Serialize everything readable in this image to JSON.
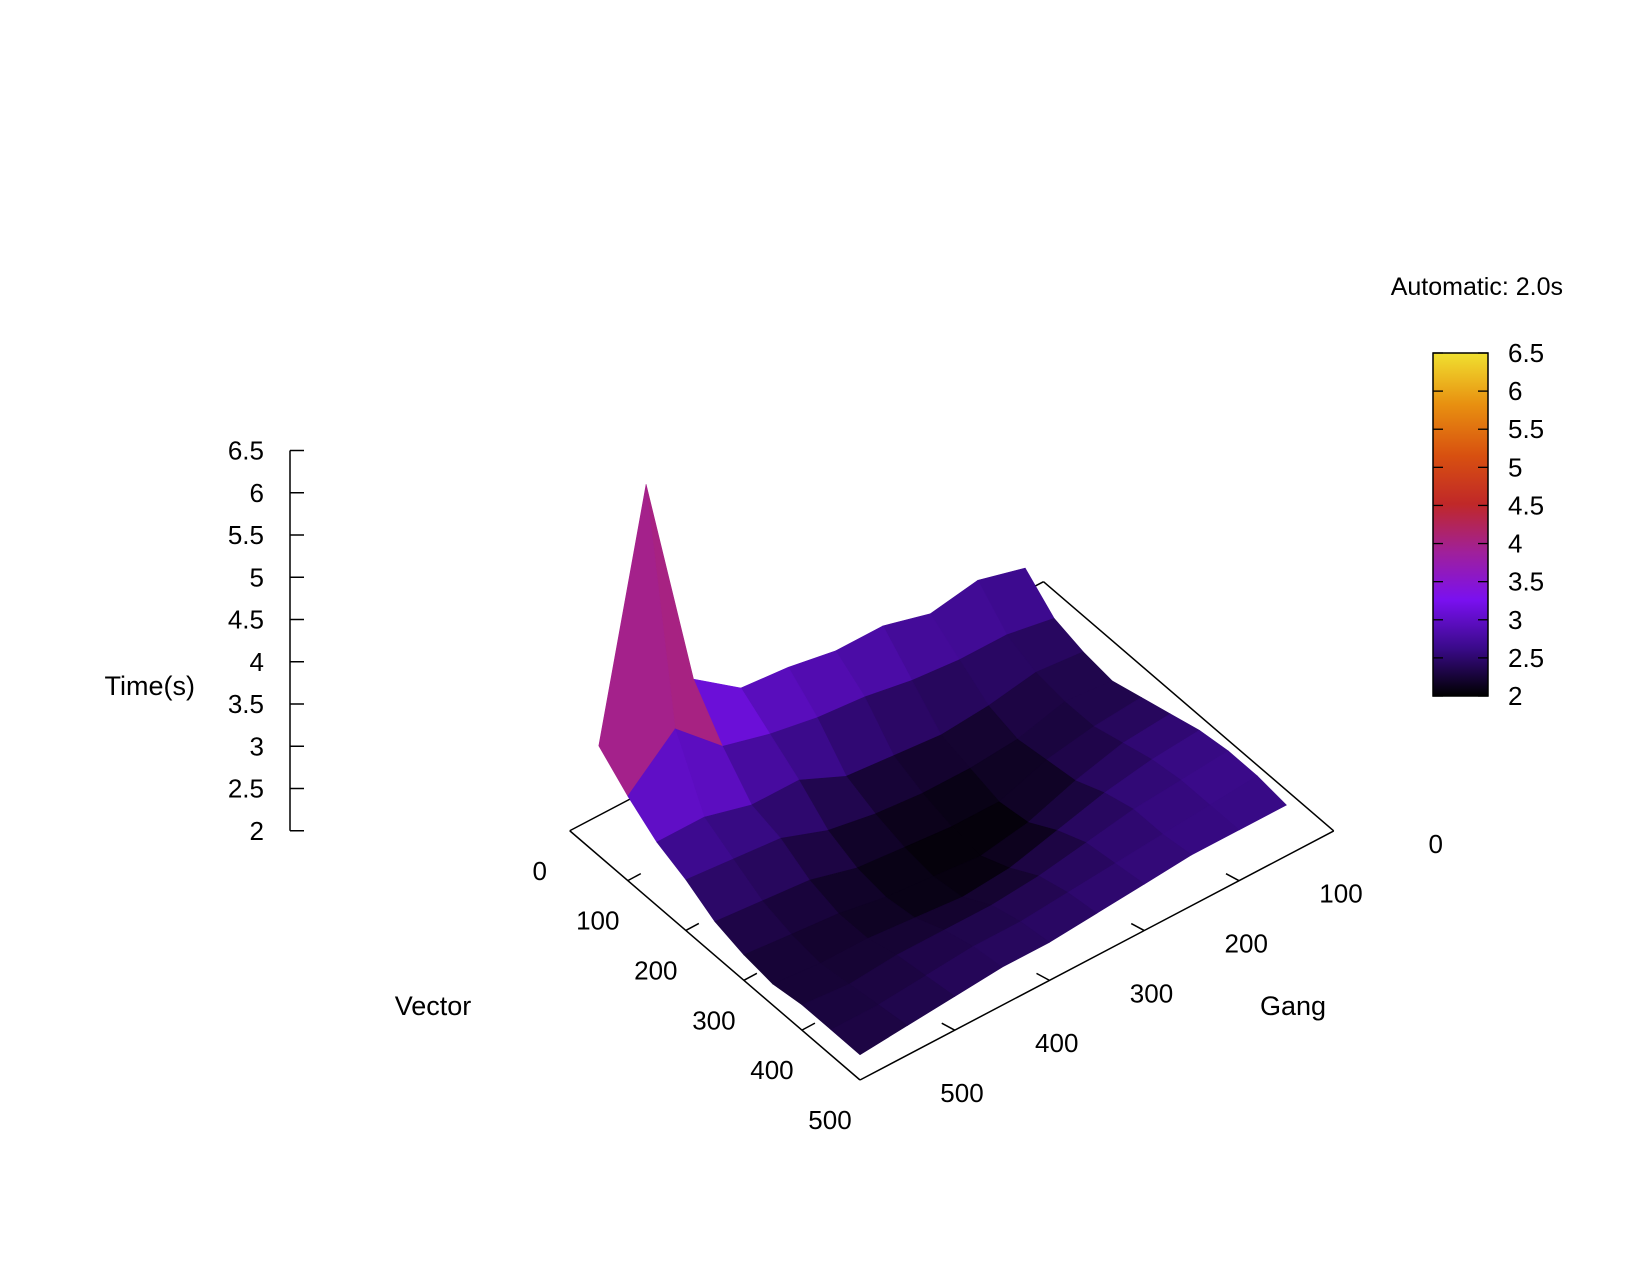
{
  "chart_data": {
    "type": "surface3d",
    "title": "",
    "annotation": "Automatic: 2.0s",
    "zlabel": "Time(s)",
    "xlabel": "Vector",
    "ylabel": "Gang",
    "zlim": [
      2,
      6.5
    ],
    "xlim": [
      0,
      500
    ],
    "ylim": [
      0,
      500
    ],
    "z_ticks": [
      "2",
      "2.5",
      "3",
      "3.5",
      "4",
      "4.5",
      "5",
      "5.5",
      "6",
      "6.5"
    ],
    "x_ticks": [
      "0",
      "100",
      "200",
      "300",
      "400",
      "500"
    ],
    "y_ticks": [
      "0",
      "100",
      "200",
      "300",
      "400",
      "500"
    ],
    "colorbar": {
      "ticks": [
        "2",
        "2.5",
        "3",
        "3.5",
        "4",
        "4.5",
        "5",
        "5.5",
        "6",
        "6.5"
      ],
      "range": [
        2,
        6.5
      ],
      "palette": [
        "#000000",
        "#3a0a8a",
        "#7a10f0",
        "#a0209a",
        "#c02828",
        "#d85010",
        "#e89010",
        "#f0e030"
      ]
    },
    "grid": {
      "vector": [
        50,
        100,
        150,
        200,
        250,
        300,
        350,
        400,
        450,
        500
      ],
      "gang": [
        50,
        100,
        150,
        200,
        250,
        300,
        350,
        400,
        450,
        500
      ],
      "z": [
        [
          2.75,
          2.9,
          2.8,
          2.95,
          2.95,
          3.05,
          3.1,
          3.5,
          6.1,
          3.3
        ],
        [
          2.45,
          2.55,
          2.55,
          2.6,
          2.7,
          2.75,
          2.85,
          3.0,
          3.5,
          3.0
        ],
        [
          2.35,
          2.4,
          2.3,
          2.25,
          2.3,
          2.35,
          2.6,
          2.6,
          2.75,
          2.75
        ],
        [
          2.3,
          2.35,
          2.2,
          2.15,
          2.15,
          2.2,
          2.3,
          2.5,
          2.55,
          2.6
        ],
        [
          2.4,
          2.35,
          2.25,
          2.05,
          2.05,
          2.1,
          2.15,
          2.3,
          2.35,
          2.4
        ],
        [
          2.5,
          2.45,
          2.3,
          2.1,
          2.0,
          2.05,
          2.1,
          2.2,
          2.25,
          2.3
        ],
        [
          2.6,
          2.55,
          2.45,
          2.3,
          2.15,
          2.1,
          2.15,
          2.2,
          2.2,
          2.25
        ],
        [
          2.65,
          2.6,
          2.55,
          2.45,
          2.35,
          2.3,
          2.3,
          2.3,
          2.25,
          2.3
        ],
        [
          2.65,
          2.6,
          2.55,
          2.5,
          2.45,
          2.4,
          2.4,
          2.35,
          2.3,
          2.3
        ],
        [
          2.6,
          2.6,
          2.6,
          2.55,
          2.5,
          2.45,
          2.45,
          2.4,
          2.35,
          2.3
        ]
      ]
    }
  }
}
